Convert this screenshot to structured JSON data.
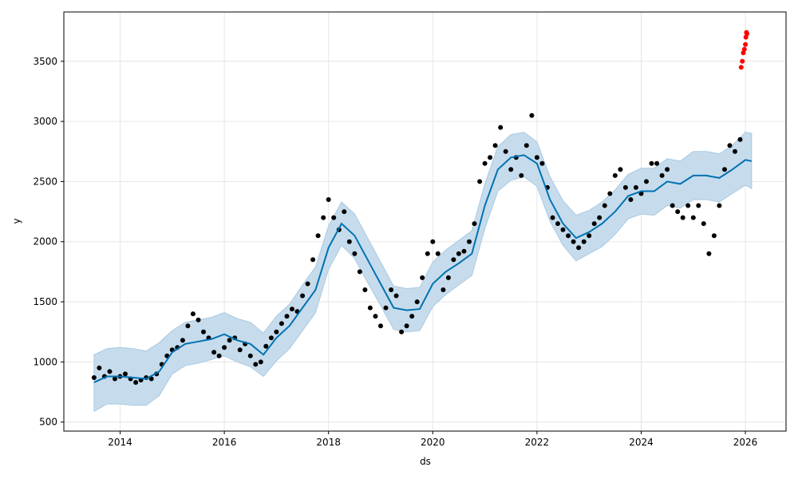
{
  "chart_data": {
    "type": "line",
    "title": "",
    "xlabel": "ds",
    "ylabel": "y",
    "xlim": [
      2012.92,
      2026.78
    ],
    "ylim": [
      425,
      3910
    ],
    "grid": true,
    "legend": null,
    "x_tick_labels": [
      "2014",
      "2016",
      "2018",
      "2020",
      "2022",
      "2024",
      "2026"
    ],
    "x_ticks": [
      2014,
      2016,
      2018,
      2020,
      2022,
      2024,
      2026
    ],
    "y_tick_labels": [
      "500",
      "1000",
      "1500",
      "2000",
      "2500",
      "3000",
      "3500"
    ],
    "y_ticks": [
      500,
      1000,
      1500,
      2000,
      2500,
      3000,
      3500
    ],
    "colors": {
      "observed": "#000000",
      "forecast_line": "#0072B2",
      "interval_fill": "#c6dcec",
      "interval_edge": "#a9c9e2",
      "recent_points": "#ff0000",
      "grid": "#e6e6e6"
    },
    "series": [
      {
        "kind": "observed_points",
        "x": [
          2013.5,
          2013.6,
          2013.7,
          2013.8,
          2013.9,
          2014.0,
          2014.1,
          2014.2,
          2014.3,
          2014.4,
          2014.5,
          2014.6,
          2014.7,
          2014.8,
          2014.9,
          2015.0,
          2015.1,
          2015.2,
          2015.3,
          2015.4,
          2015.5,
          2015.6,
          2015.7,
          2015.8,
          2015.9,
          2016.0,
          2016.1,
          2016.2,
          2016.3,
          2016.4,
          2016.5,
          2016.6,
          2016.7,
          2016.8,
          2016.9,
          2017.0,
          2017.1,
          2017.2,
          2017.3,
          2017.4,
          2017.5,
          2017.6,
          2017.7,
          2017.8,
          2017.9,
          2018.0,
          2018.1,
          2018.2,
          2018.3,
          2018.4,
          2018.5,
          2018.6,
          2018.7,
          2018.8,
          2018.9,
          2019.0,
          2019.1,
          2019.2,
          2019.3,
          2019.4,
          2019.5,
          2019.6,
          2019.7,
          2019.8,
          2019.9,
          2020.0,
          2020.1,
          2020.2,
          2020.3,
          2020.4,
          2020.5,
          2020.6,
          2020.7,
          2020.8,
          2020.9,
          2021.0,
          2021.1,
          2021.2,
          2021.3,
          2021.4,
          2021.5,
          2021.6,
          2021.7,
          2021.8,
          2021.9,
          2022.0,
          2022.1,
          2022.2,
          2022.3,
          2022.4,
          2022.5,
          2022.6,
          2022.7,
          2022.8,
          2022.9,
          2023.0,
          2023.1,
          2023.2,
          2023.3,
          2023.4,
          2023.5,
          2023.6,
          2023.7,
          2023.8,
          2023.9,
          2024.0,
          2024.1,
          2024.2,
          2024.3,
          2024.4,
          2024.5,
          2024.6,
          2024.7,
          2024.8,
          2024.9,
          2025.0,
          2025.1,
          2025.2,
          2025.3,
          2025.4,
          2025.5,
          2025.6,
          2025.7,
          2025.8,
          2025.9
        ],
        "y": [
          870,
          950,
          880,
          920,
          860,
          880,
          900,
          860,
          830,
          850,
          870,
          860,
          900,
          980,
          1050,
          1100,
          1120,
          1180,
          1300,
          1400,
          1350,
          1250,
          1200,
          1080,
          1050,
          1120,
          1180,
          1200,
          1100,
          1150,
          1050,
          980,
          1000,
          1130,
          1200,
          1250,
          1320,
          1380,
          1440,
          1420,
          1550,
          1650,
          1850,
          2050,
          2200,
          2350,
          2200,
          2100,
          2250,
          2000,
          1900,
          1750,
          1600,
          1450,
          1380,
          1300,
          1450,
          1600,
          1550,
          1250,
          1300,
          1380,
          1500,
          1700,
          1900,
          2000,
          1900,
          1600,
          1700,
          1850,
          1900,
          1920,
          2000,
          2150,
          2500,
          2650,
          2700,
          2800,
          2950,
          2750,
          2600,
          2700,
          2550,
          2800,
          3050,
          2700,
          2650,
          2450,
          2200,
          2150,
          2100,
          2050,
          2000,
          1950,
          2000,
          2050,
          2150,
          2200,
          2300,
          2400,
          2550,
          2600,
          2450,
          2350,
          2450,
          2400,
          2500,
          2650,
          2650,
          2550,
          2600,
          2300,
          2250,
          2200,
          2300,
          2200,
          2300,
          2150,
          1900,
          2050,
          2300,
          2600,
          2800,
          2750,
          2850
        ],
        "size": 3
      },
      {
        "kind": "forecast_line",
        "x": [
          2013.5,
          2013.75,
          2014.0,
          2014.25,
          2014.5,
          2014.75,
          2015.0,
          2015.25,
          2015.5,
          2015.75,
          2016.0,
          2016.25,
          2016.5,
          2016.75,
          2017.0,
          2017.25,
          2017.5,
          2017.75,
          2018.0,
          2018.25,
          2018.5,
          2018.75,
          2019.0,
          2019.25,
          2019.5,
          2019.75,
          2020.0,
          2020.25,
          2020.5,
          2020.75,
          2021.0,
          2021.25,
          2021.5,
          2021.75,
          2022.0,
          2022.25,
          2022.5,
          2022.75,
          2023.0,
          2023.25,
          2023.5,
          2023.75,
          2024.0,
          2024.25,
          2024.5,
          2024.75,
          2025.0,
          2025.25,
          2025.5,
          2025.75,
          2026.0,
          2026.12
        ],
        "y": [
          830,
          880,
          880,
          870,
          860,
          920,
          1080,
          1150,
          1170,
          1190,
          1230,
          1180,
          1150,
          1060,
          1200,
          1300,
          1450,
          1600,
          1950,
          2150,
          2050,
          1850,
          1650,
          1450,
          1430,
          1440,
          1650,
          1750,
          1820,
          1900,
          2300,
          2600,
          2700,
          2720,
          2650,
          2350,
          2150,
          2030,
          2080,
          2150,
          2250,
          2380,
          2420,
          2420,
          2500,
          2480,
          2550,
          2550,
          2530,
          2600,
          2680,
          2670
        ]
      },
      {
        "kind": "uncertainty_interval",
        "x": [
          2013.5,
          2013.75,
          2014.0,
          2014.25,
          2014.5,
          2014.75,
          2015.0,
          2015.25,
          2015.5,
          2015.75,
          2016.0,
          2016.25,
          2016.5,
          2016.75,
          2017.0,
          2017.25,
          2017.5,
          2017.75,
          2018.0,
          2018.25,
          2018.5,
          2018.75,
          2019.0,
          2019.25,
          2019.5,
          2019.75,
          2020.0,
          2020.25,
          2020.5,
          2020.75,
          2021.0,
          2021.25,
          2021.5,
          2021.75,
          2022.0,
          2022.25,
          2022.5,
          2022.75,
          2023.0,
          2023.25,
          2023.5,
          2023.75,
          2024.0,
          2024.25,
          2024.5,
          2024.75,
          2025.0,
          2025.25,
          2025.5,
          2025.75,
          2026.0,
          2026.12
        ],
        "lower": [
          590,
          650,
          650,
          640,
          640,
          720,
          900,
          970,
          990,
          1020,
          1050,
          1000,
          960,
          880,
          1010,
          1110,
          1260,
          1410,
          1770,
          1970,
          1860,
          1660,
          1470,
          1270,
          1250,
          1260,
          1460,
          1560,
          1640,
          1720,
          2110,
          2420,
          2510,
          2540,
          2460,
          2170,
          1970,
          1840,
          1900,
          1960,
          2060,
          2190,
          2230,
          2220,
          2300,
          2280,
          2350,
          2350,
          2330,
          2400,
          2470,
          2440
        ],
        "upper": [
          1060,
          1110,
          1120,
          1110,
          1090,
          1160,
          1260,
          1330,
          1350,
          1370,
          1410,
          1360,
          1330,
          1240,
          1380,
          1480,
          1640,
          1790,
          2130,
          2330,
          2230,
          2030,
          1830,
          1630,
          1610,
          1620,
          1830,
          1930,
          2010,
          2090,
          2480,
          2790,
          2890,
          2910,
          2830,
          2540,
          2340,
          2220,
          2260,
          2330,
          2430,
          2560,
          2610,
          2610,
          2690,
          2670,
          2750,
          2750,
          2730,
          2800,
          2910,
          2900
        ]
      },
      {
        "kind": "recent_points",
        "x": [
          2025.92,
          2025.94,
          2025.96,
          2025.98,
          2026.0,
          2026.01,
          2026.02,
          2026.03
        ],
        "y": [
          3450,
          3500,
          3570,
          3600,
          3640,
          3700,
          3740,
          3730
        ],
        "size": 3
      }
    ]
  }
}
